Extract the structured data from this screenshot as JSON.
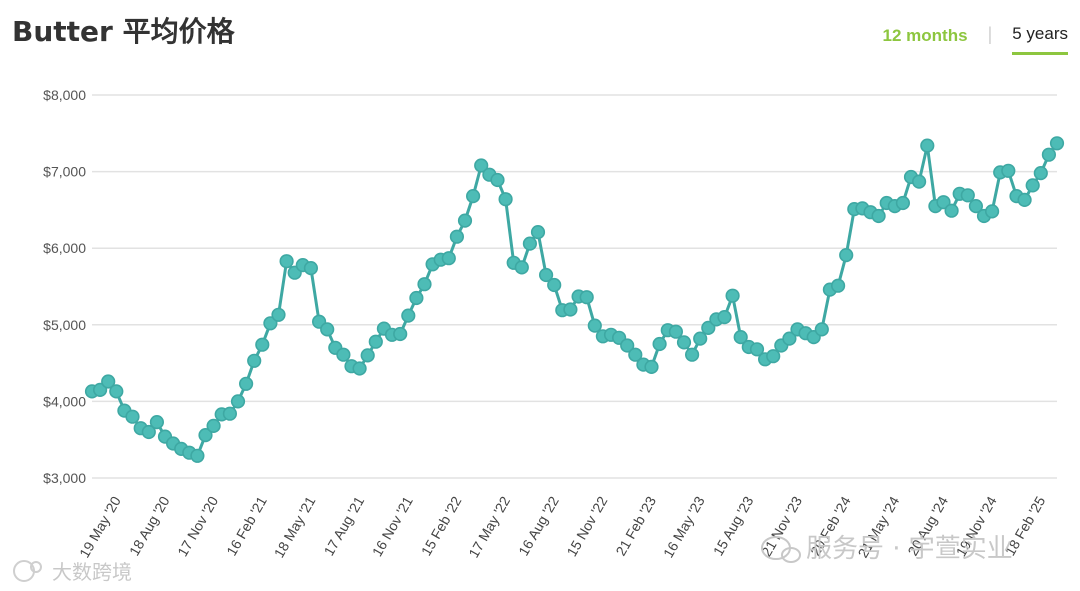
{
  "header": {
    "title": "Butter 平均价格",
    "tabs": [
      {
        "label": "12 months",
        "active": false
      },
      {
        "label": "5 years",
        "active": true
      }
    ],
    "separator": "|"
  },
  "watermarks": {
    "left": "大数跨境",
    "right": "服务号 · 宇萱实业"
  },
  "colors": {
    "series": "#3ea8a3",
    "marker_fill": "#4dbcb6",
    "accent": "#8dc63f",
    "grid": "#e2e2e2"
  },
  "chart_data": {
    "type": "line",
    "title": "Butter 平均价格",
    "xlabel": "",
    "ylabel": "",
    "ylim": [
      3000,
      8000
    ],
    "yticks": [
      {
        "value": 3000,
        "label": "$3,000"
      },
      {
        "value": 4000,
        "label": "$4,000"
      },
      {
        "value": 5000,
        "label": "$5,000"
      },
      {
        "value": 6000,
        "label": "$6,000"
      },
      {
        "value": 7000,
        "label": "$7,000"
      },
      {
        "value": 8000,
        "label": "$8,000"
      }
    ],
    "xticks": [
      {
        "index": 3,
        "label": "19 May '20"
      },
      {
        "index": 9,
        "label": "18 Aug '20"
      },
      {
        "index": 15,
        "label": "17 Nov '20"
      },
      {
        "index": 21,
        "label": "16 Feb '21"
      },
      {
        "index": 27,
        "label": "18 May '21"
      },
      {
        "index": 33,
        "label": "17 Aug '21"
      },
      {
        "index": 39,
        "label": "16 Nov '21"
      },
      {
        "index": 45,
        "label": "15 Feb '22"
      },
      {
        "index": 51,
        "label": "17 May '22"
      },
      {
        "index": 57,
        "label": "16 Aug '22"
      },
      {
        "index": 63,
        "label": "15 Nov '22"
      },
      {
        "index": 69,
        "label": "21 Feb '23"
      },
      {
        "index": 75,
        "label": "16 May '23"
      },
      {
        "index": 81,
        "label": "15 Aug '23"
      },
      {
        "index": 87,
        "label": "21 Nov '23"
      },
      {
        "index": 93,
        "label": "20 Feb '24"
      },
      {
        "index": 99,
        "label": "21 May '24"
      },
      {
        "index": 105,
        "label": "20 Aug '24"
      },
      {
        "index": 111,
        "label": "19 Nov '24"
      },
      {
        "index": 117,
        "label": "18 Feb '25"
      }
    ],
    "grid": true,
    "legend": "none",
    "series": [
      {
        "values": [
          4130,
          4150,
          4260,
          4130,
          3880,
          3800,
          3650,
          3600,
          3730,
          3540,
          3450,
          3380,
          3330,
          3290,
          3560,
          3680,
          3830,
          3840,
          4000,
          4230,
          4530,
          4740,
          5020,
          5130,
          5830,
          5680,
          5780,
          5740,
          5040,
          4940,
          4700,
          4610,
          4460,
          4430,
          4600,
          4780,
          4950,
          4870,
          4880,
          5120,
          5350,
          5530,
          5790,
          5850,
          5870,
          6150,
          6360,
          6680,
          7080,
          6960,
          6890,
          6640,
          5810,
          5750,
          6060,
          6210,
          5650,
          5520,
          5190,
          5200,
          5370,
          5360,
          4990,
          4850,
          4870,
          4830,
          4730,
          4610,
          4480,
          4450,
          4750,
          4930,
          4910,
          4770,
          4610,
          4820,
          4960,
          5070,
          5100,
          5380,
          4840,
          4710,
          4680,
          4550,
          4590,
          4730,
          4820,
          4940,
          4890,
          4840,
          4940,
          5460,
          5510,
          5910,
          6510,
          6520,
          6470,
          6420,
          6590,
          6550,
          6590,
          6930,
          6870,
          7340,
          6550,
          6600,
          6490,
          6710,
          6690,
          6550,
          6420,
          6480,
          6990,
          7010,
          6680,
          6630,
          6820,
          6980,
          7220,
          7370
        ]
      }
    ]
  }
}
